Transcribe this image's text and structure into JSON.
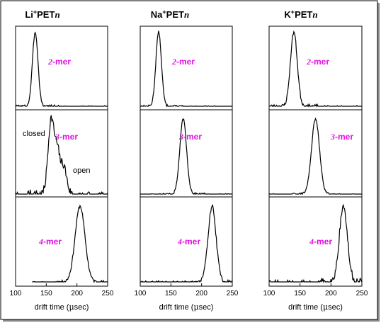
{
  "chart_data": {
    "type": "line",
    "xlabel_prefix": "drift time (",
    "xlabel_unit": "μ",
    "xlabel_suffix": "sec)",
    "xlim": [
      100,
      250
    ],
    "xticks": [
      "100",
      "150",
      "200",
      "250"
    ],
    "panels": [
      {
        "ion": "Li",
        "charge": "+",
        "suffix": "PET",
        "n": "n",
        "traces": [
          {
            "prefix": "2",
            "label": "-mer",
            "peak": 132,
            "width": 4.5,
            "noise": 0.02,
            "seed": 3
          },
          {
            "prefix": "3",
            "label": "-mer",
            "peak": 158,
            "width": 5,
            "noise": 0.06,
            "seed": 7,
            "extra": [
              {
                "c": 168,
                "h": 0.48,
                "w": 4
              },
              {
                "c": 178,
                "h": 0.38,
                "w": 5
              }
            ],
            "annotations": [
              "closed",
              "open"
            ]
          },
          {
            "prefix": "4",
            "label": "-mer",
            "peak": 205,
            "width": 8,
            "noise": 0.02,
            "seed": 11
          }
        ]
      },
      {
        "ion": "Na",
        "charge": "+",
        "suffix": "PET",
        "n": "n",
        "traces": [
          {
            "prefix": "2",
            "label": "-mer",
            "peak": 130,
            "width": 4.5,
            "noise": 0.015,
            "seed": 13
          },
          {
            "prefix": "3",
            "label": "-mer",
            "peak": 170,
            "width": 5.5,
            "noise": 0.015,
            "seed": 17
          },
          {
            "prefix": "4",
            "label": "-mer",
            "peak": 217,
            "width": 6.5,
            "noise": 0.03,
            "seed": 19
          }
        ]
      },
      {
        "ion": "K",
        "charge": "+",
        "suffix": "PET",
        "n": "n",
        "traces": [
          {
            "prefix": "2",
            "label": "-mer",
            "peak": 140,
            "width": 5.5,
            "noise": 0.025,
            "seed": 23
          },
          {
            "prefix": "3",
            "label": "-mer",
            "peak": 175,
            "width": 6.5,
            "noise": 0.015,
            "seed": 29
          },
          {
            "prefix": "4",
            "label": "-mer",
            "peak": 220,
            "width": 6.5,
            "noise": 0.05,
            "seed": 31
          }
        ]
      }
    ]
  }
}
